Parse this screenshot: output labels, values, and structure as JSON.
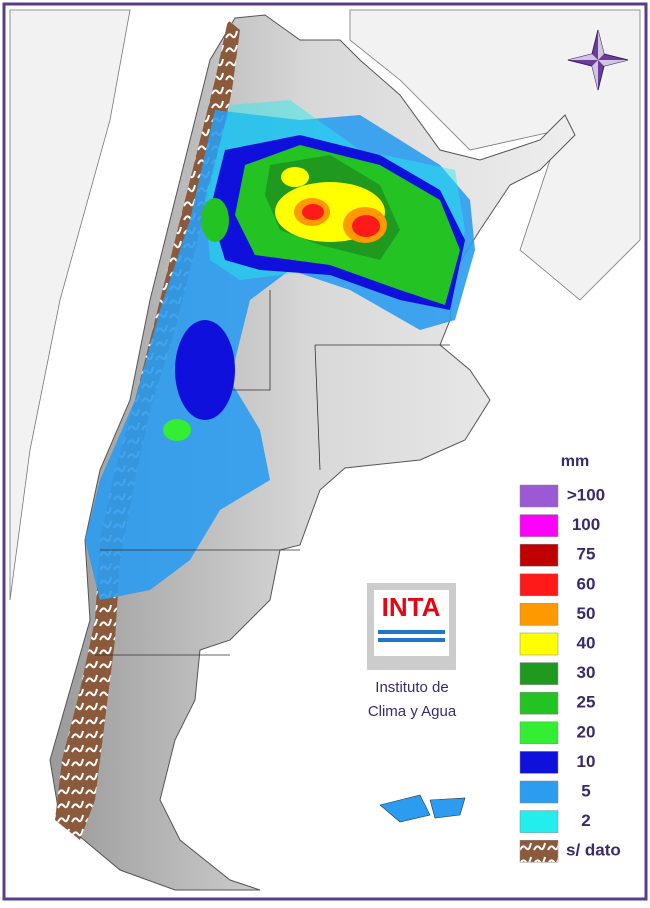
{
  "legend": {
    "title": "mm",
    "items": [
      {
        "label": ">100",
        "color": "#9b59d6"
      },
      {
        "label": "100",
        "color": "#ff00ff"
      },
      {
        "label": "75",
        "color": "#c00000"
      },
      {
        "label": "60",
        "color": "#ff1a1a"
      },
      {
        "label": "50",
        "color": "#ff9900"
      },
      {
        "label": "40",
        "color": "#ffff00"
      },
      {
        "label": "30",
        "color": "#1f9a1f"
      },
      {
        "label": "25",
        "color": "#22c322"
      },
      {
        "label": "20",
        "color": "#33ee33"
      },
      {
        "label": "10",
        "color": "#1010dd"
      },
      {
        "label": "5",
        "color": "#2b9cf0"
      },
      {
        "label": "2",
        "color": "#22eeee"
      },
      {
        "label": "s/ dato",
        "color": "#8b5a3c"
      }
    ]
  },
  "logo": {
    "text": "INTA",
    "caption_lines": [
      "Instituto de",
      "Clima y Agua"
    ]
  }
}
